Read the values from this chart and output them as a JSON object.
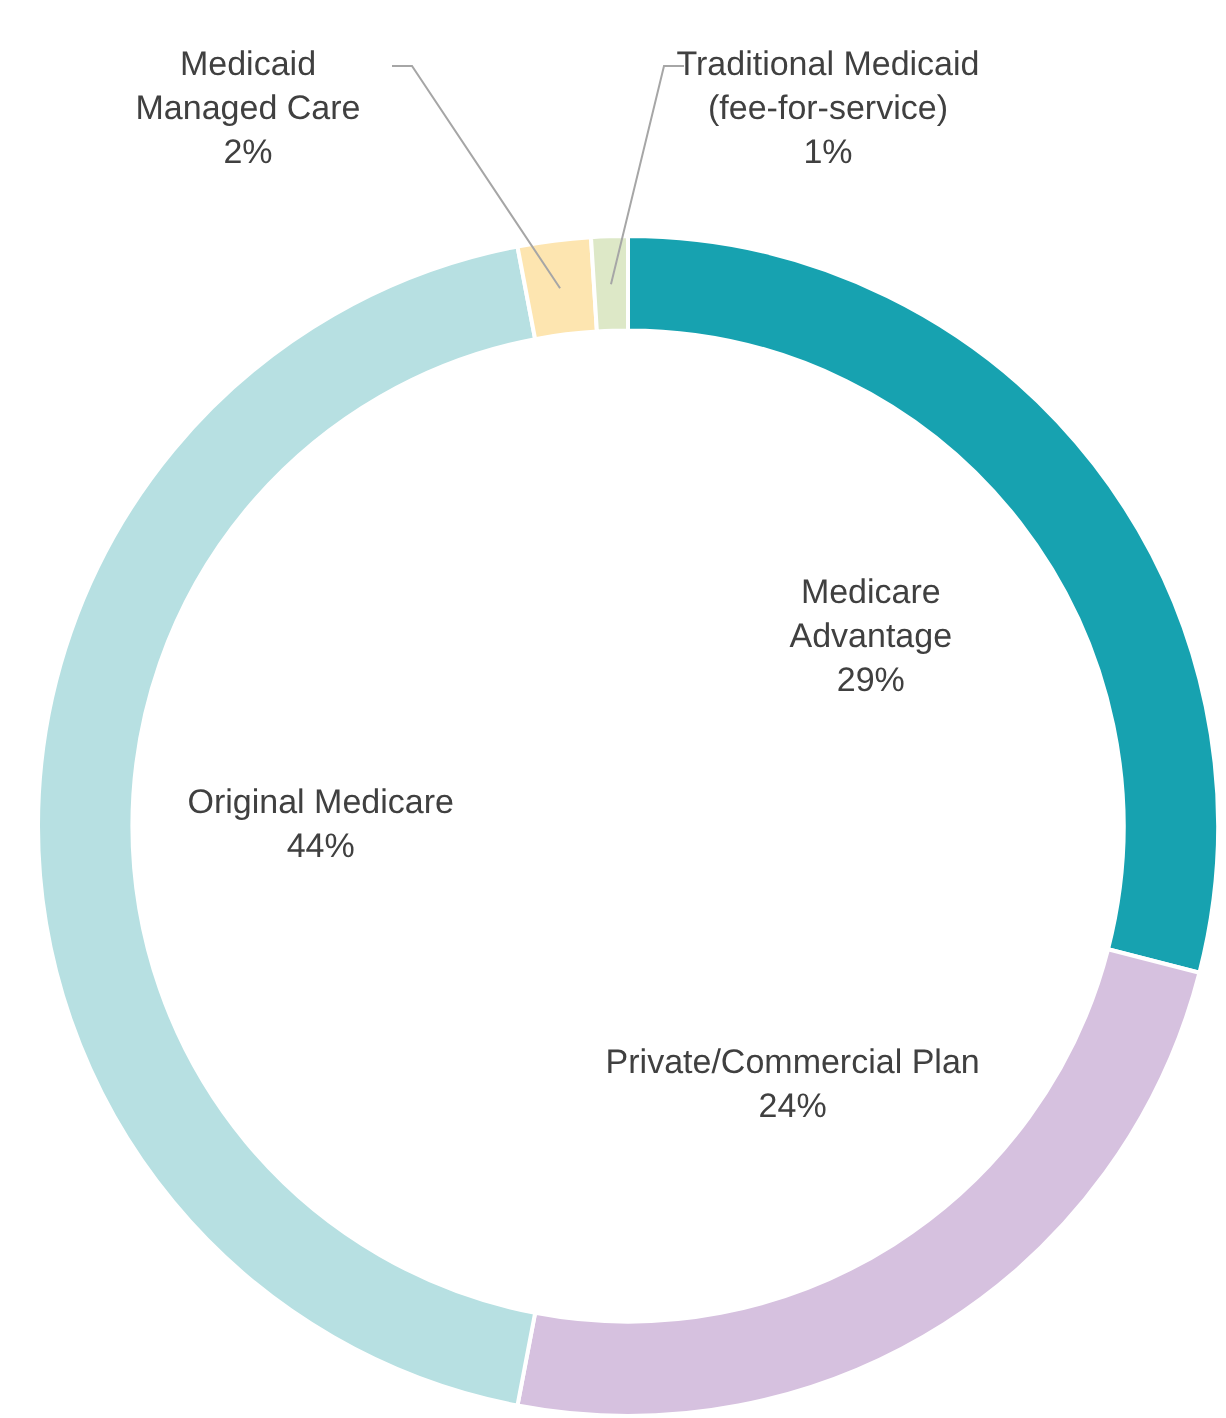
{
  "chart_data": {
    "type": "donut",
    "categories": [
      "Medicare\nAdvantage",
      "Private/Commercial Plan",
      "Original Medicare",
      "Medicaid\nManaged Care",
      "Traditional Medicaid\n(fee-for-service)"
    ],
    "values": [
      29,
      24,
      44,
      2,
      1
    ],
    "colors": [
      "#17a2b0",
      "#d6c1df",
      "#b7e0e2",
      "#fde5b0",
      "#dde8c7"
    ],
    "value_labels": [
      "29%",
      "24%",
      "44%",
      "2%",
      "1%"
    ],
    "legend": false
  }
}
